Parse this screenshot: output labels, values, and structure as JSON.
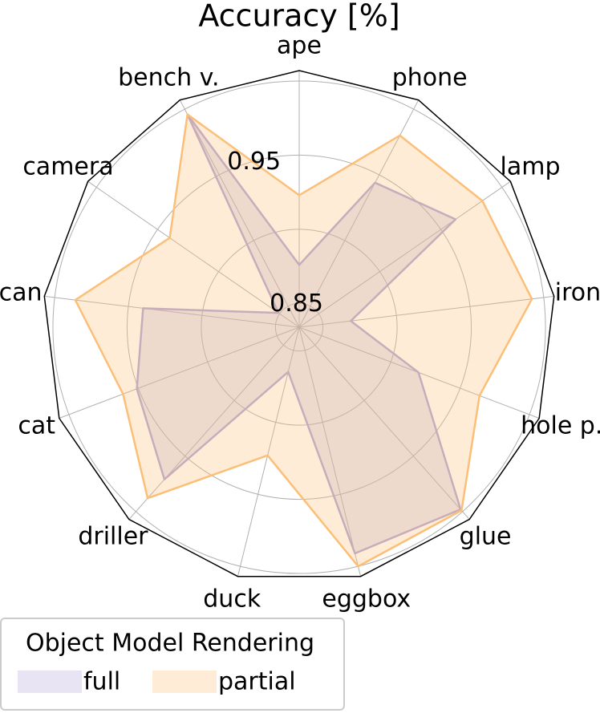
{
  "chart_data": {
    "type": "radar",
    "title": "Accuracy [%]",
    "categories": [
      "ape",
      "phone",
      "lamp",
      "iron",
      "hole p.",
      "glue",
      "eggbox",
      "duck",
      "driller",
      "cat",
      "can",
      "camera",
      "bench v."
    ],
    "series": [
      {
        "name": "full",
        "color": "#b3a4d8",
        "values": [
          0.876,
          0.944,
          0.962,
          0.869,
          0.92,
          0.998,
          0.991,
          0.865,
          0.971,
          0.951,
          0.94,
          0.851,
          0.996
        ]
      },
      {
        "name": "partial",
        "color": "#fbbf77",
        "values": [
          0.923,
          0.98,
          0.984,
          0.992,
          0.964,
          0.999,
          1.0,
          0.923,
          0.988,
          0.961,
          0.986,
          0.94,
          0.996
        ]
      }
    ],
    "ylim": [
      0.834,
      1.007
    ],
    "yticks": [
      0.85,
      0.95
    ],
    "minor_yticks": [
      0.9,
      1.0
    ],
    "grid": true,
    "legend_title": "Object Model Rendering",
    "legend": "lower left"
  }
}
